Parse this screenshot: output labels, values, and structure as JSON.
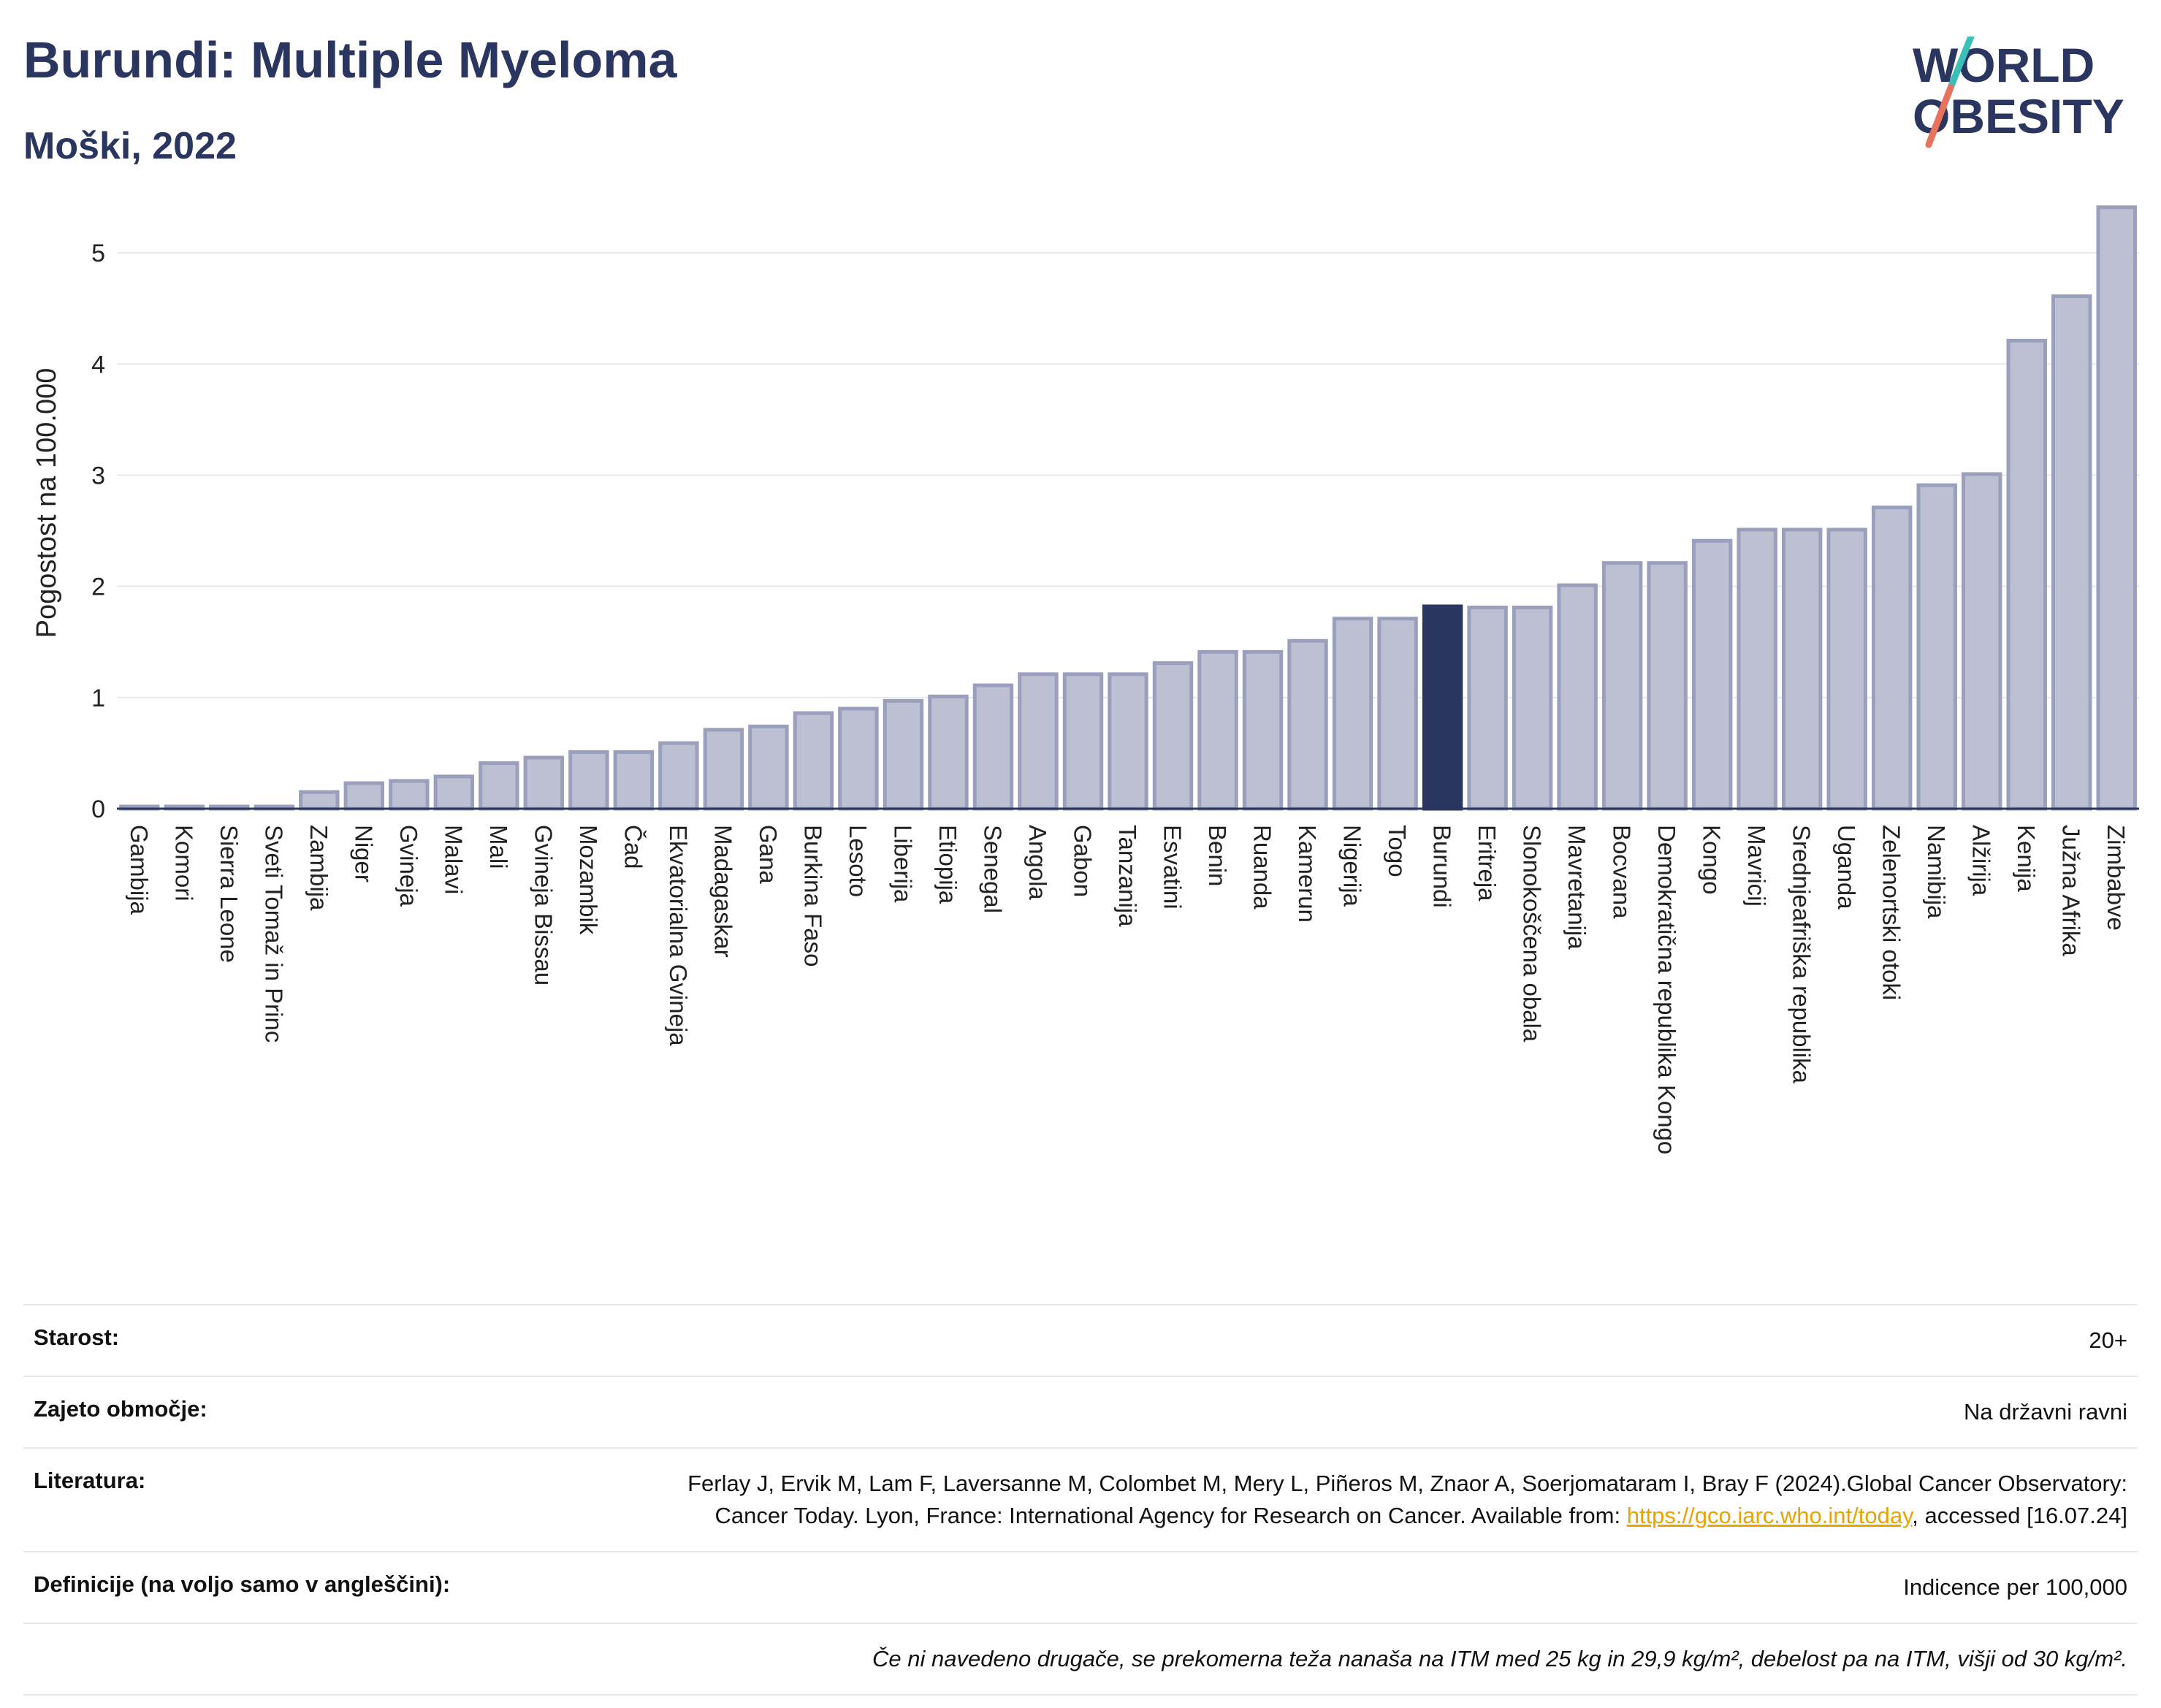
{
  "header": {
    "title": "Burundi: Multiple Myeloma",
    "subtitle": "Moški, 2022"
  },
  "logo": {
    "line1": "WORLD",
    "line2": "OBESITY",
    "accent_colors": [
      "#3bbfb7",
      "#e8725c"
    ]
  },
  "chart_data": {
    "type": "bar",
    "ylabel": "Pogostost na 100.000",
    "xlabel": "",
    "ylim": [
      0,
      5.5
    ],
    "yticks": [
      0,
      1,
      2,
      3,
      4,
      5
    ],
    "grid": true,
    "highlight": "Burundi",
    "colors": {
      "bar": "#bcc0d2",
      "bar_border": "#9aa0bb",
      "highlight": "#2a3560"
    },
    "categories": [
      "Gambija",
      "Komori",
      "Sierra Leone",
      "Sveti Tomaž in Princ",
      "Zambija",
      "Niger",
      "Gvineja",
      "Malavi",
      "Mali",
      "Gvineja Bissau",
      "Mozambik",
      "Čad",
      "Ekvatorialna Gvineja",
      "Madagaskar",
      "Gana",
      "Burkina Faso",
      "Lesoto",
      "Liberija",
      "Etiopija",
      "Senegal",
      "Angola",
      "Gabon",
      "Tanzanija",
      "Esvatini",
      "Benin",
      "Ruanda",
      "Kamerun",
      "Nigerija",
      "Togo",
      "Burundi",
      "Eritreja",
      "Slonokoščena obala",
      "Mavretanija",
      "Bocvana",
      "Demokratična republika Kongo",
      "Kongo",
      "Mavricij",
      "Srednjeafriška republika",
      "Uganda",
      "Zelenortski otoki",
      "Namibija",
      "Alžirija",
      "Kenija",
      "Južna Afrika",
      "Zimbabve"
    ],
    "values": [
      0.02,
      0.02,
      0.02,
      0.02,
      0.15,
      0.23,
      0.25,
      0.29,
      0.41,
      0.46,
      0.51,
      0.51,
      0.59,
      0.71,
      0.74,
      0.86,
      0.9,
      0.97,
      1.01,
      1.11,
      1.21,
      1.21,
      1.21,
      1.31,
      1.41,
      1.41,
      1.51,
      1.71,
      1.71,
      1.82,
      1.81,
      1.81,
      2.01,
      2.21,
      2.21,
      2.41,
      2.51,
      2.51,
      2.51,
      2.71,
      2.91,
      3.01,
      4.21,
      4.61,
      5.41
    ]
  },
  "meta": {
    "age_label": "Starost:",
    "age_value": "20+",
    "area_label": "Zajeto območje:",
    "area_value": "Na državni ravni",
    "lit_label": "Literatura:",
    "lit_value_1": "Ferlay J, Ervik M, Lam F, Laversanne M, Colombet M, Mery L, Piñeros M, Znaor A, Soerjomataram I, Bray F (2024).Global Cancer Observatory: Cancer Today. Lyon, France: International Agency for Research on Cancer. Available from: ",
    "lit_link": "https://gco.iarc.who.int/today",
    "lit_value_2": ", accessed [16.07.24]",
    "def_label": "Definicije (na voljo samo v angleščini):",
    "def_value": "Indicence per 100,000",
    "note": "Če ni navedeno drugače, se prekomerna teža nanaša na ITM med 25 kg in 29,9 kg/m², debelost pa na ITM, višji od 30 kg/m²."
  }
}
